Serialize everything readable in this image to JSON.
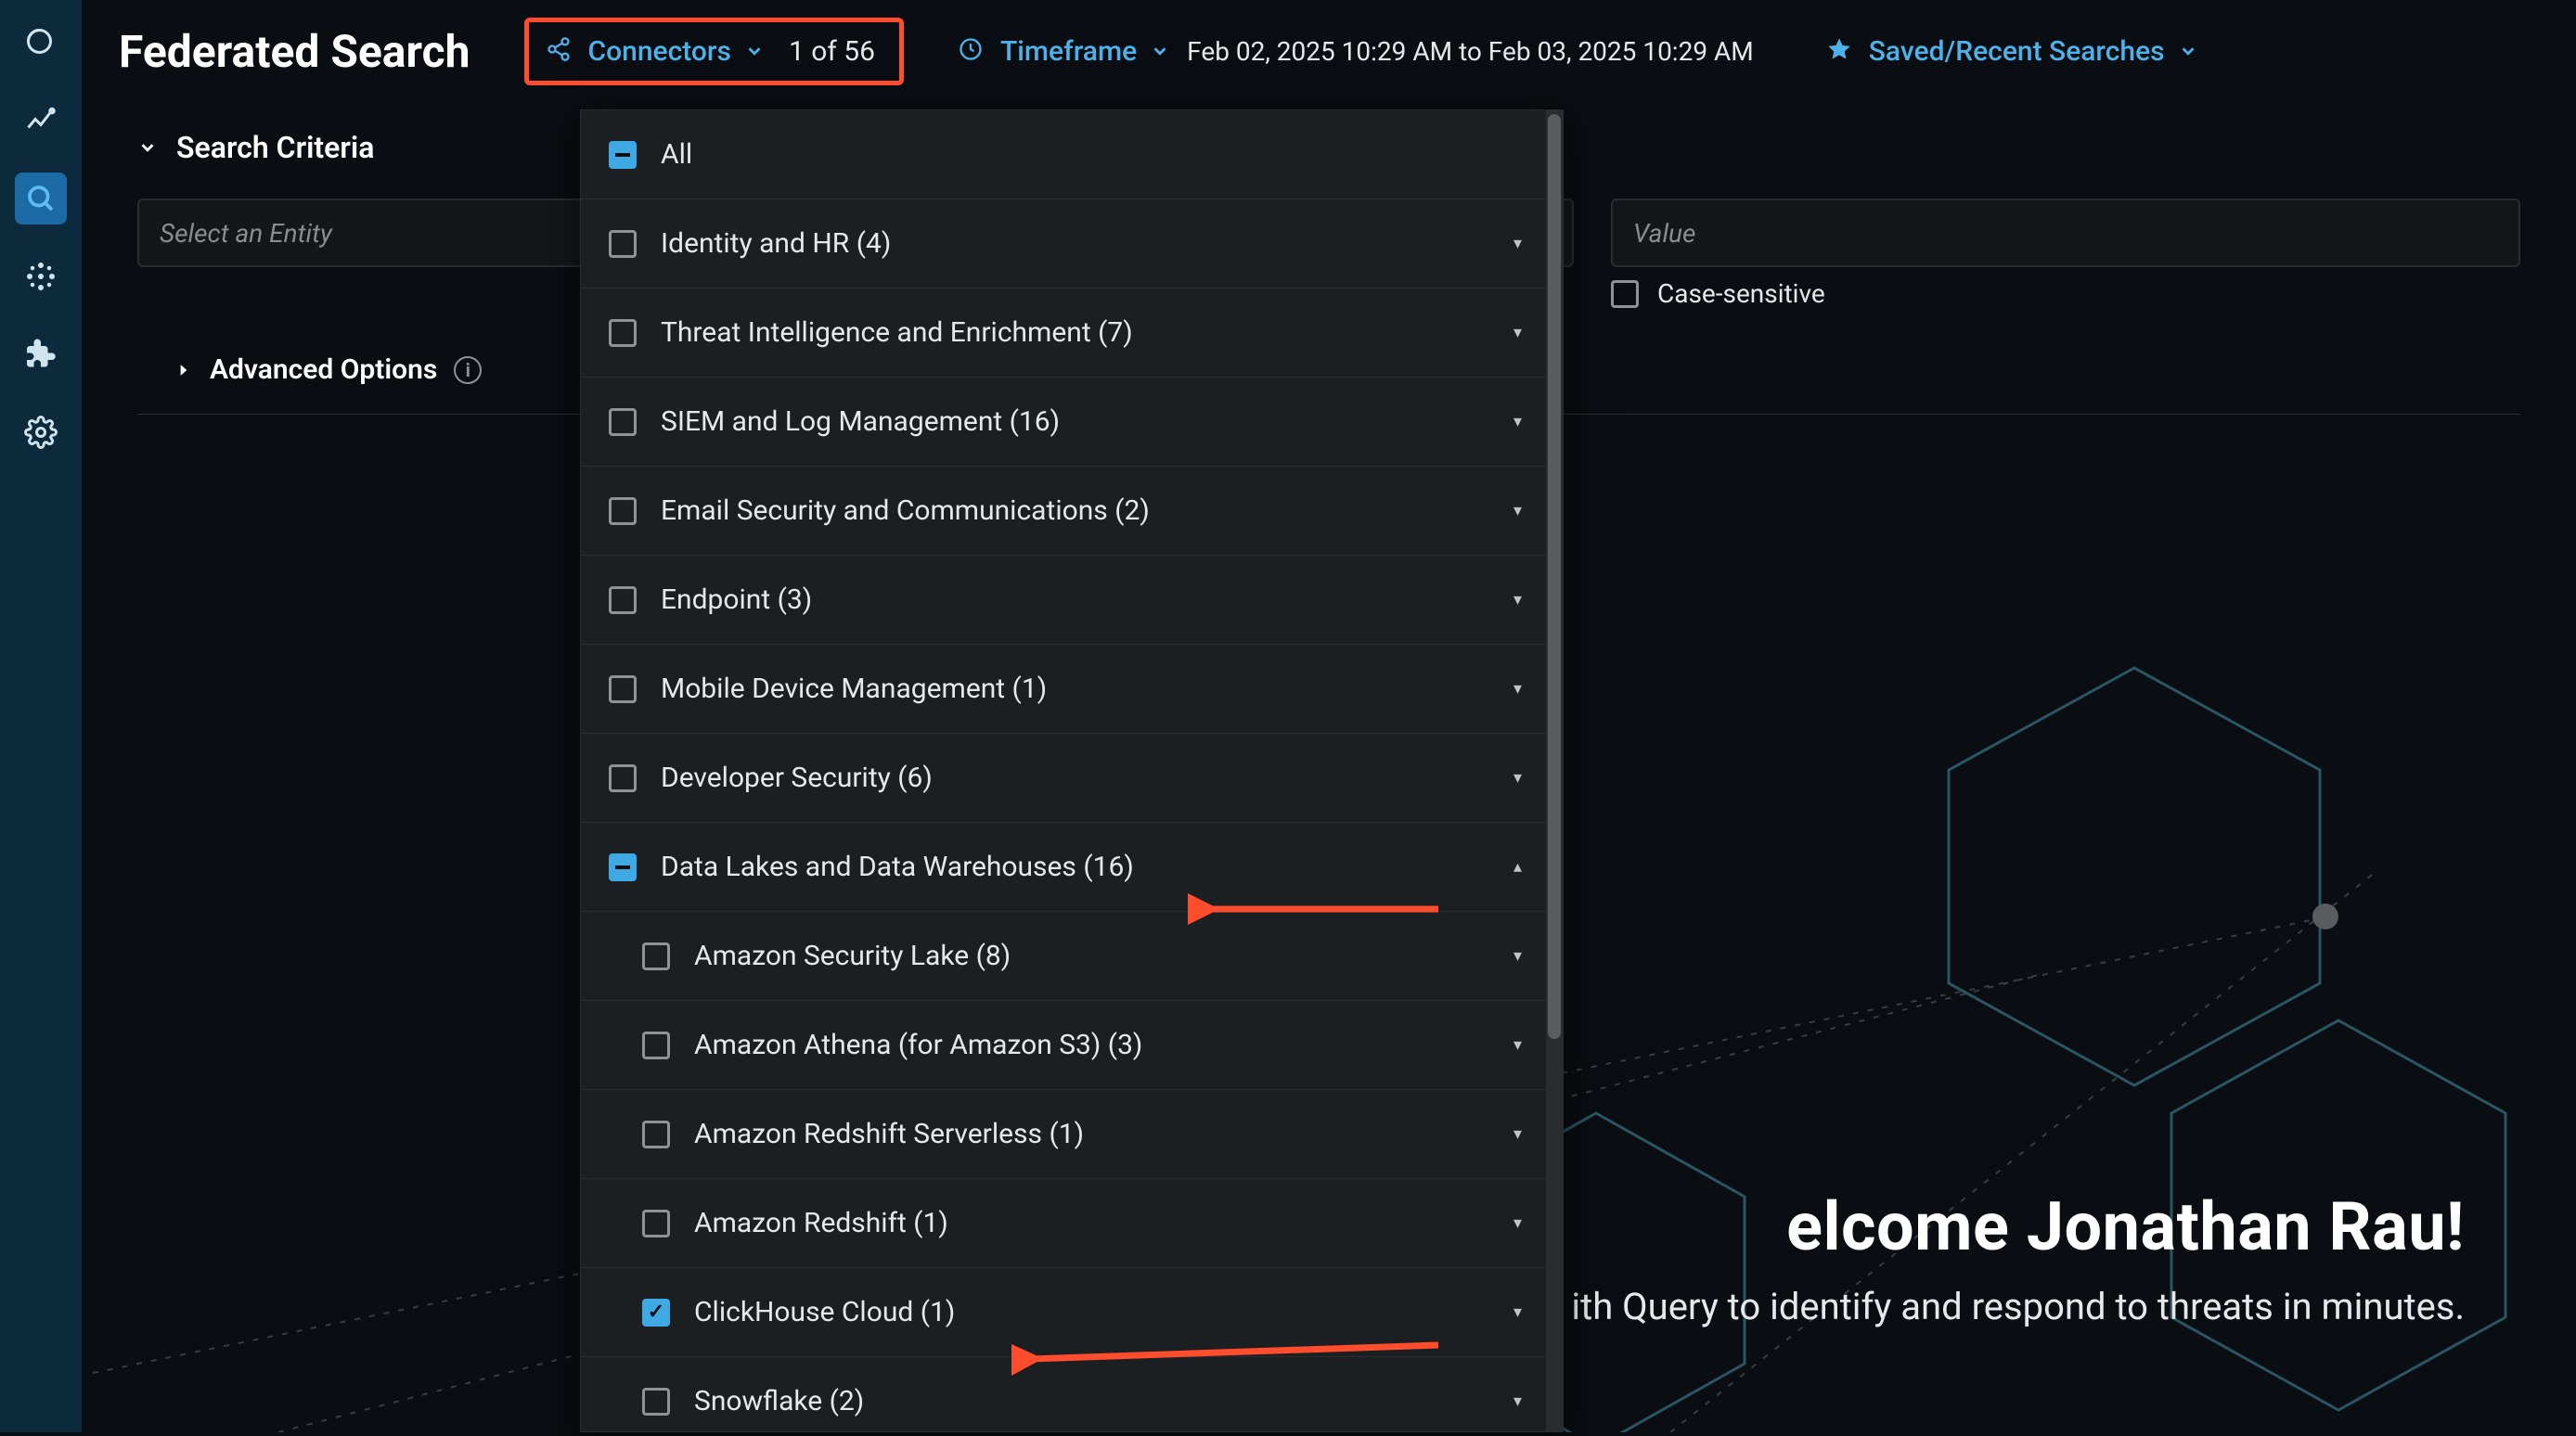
{
  "colors": {
    "bg": "#0a0d11",
    "rail": "#0d2a3d",
    "accent": "#3ea9e3",
    "link": "#4db1ea",
    "panel": "#1c1f22",
    "border": "#2a2d30",
    "text": "#e6e8ea",
    "muted": "#8a8d90",
    "highlight": "#ff4d2e"
  },
  "page_title": "Federated Search",
  "topbar": {
    "connectors_label": "Connectors",
    "connectors_count": "1 of 56",
    "timeframe_label": "Timeframe",
    "timeframe_value": "Feb 02, 2025 10:29 AM to Feb 03, 2025 10:29 AM",
    "saved_label": "Saved/Recent Searches"
  },
  "criteria": {
    "heading": "Search Criteria",
    "entity_placeholder": "Select an Entity",
    "value_placeholder": "Value",
    "case_sensitive_label": "Case-sensitive",
    "advanced_label": "Advanced Options"
  },
  "dropdown": {
    "all_label": "All",
    "categories": [
      {
        "label": "Identity and HR (4)",
        "state": "unchecked",
        "expanded": false
      },
      {
        "label": "Threat Intelligence and Enrichment (7)",
        "state": "unchecked",
        "expanded": false
      },
      {
        "label": "SIEM and Log Management (16)",
        "state": "unchecked",
        "expanded": false
      },
      {
        "label": "Email Security and Communications (2)",
        "state": "unchecked",
        "expanded": false
      },
      {
        "label": "Endpoint (3)",
        "state": "unchecked",
        "expanded": false
      },
      {
        "label": "Mobile Device Management (1)",
        "state": "unchecked",
        "expanded": false
      },
      {
        "label": "Developer Security (6)",
        "state": "unchecked",
        "expanded": false
      },
      {
        "label": "Data Lakes and Data Warehouses (16)",
        "state": "indeterminate",
        "expanded": true,
        "children": [
          {
            "label": "Amazon Security Lake (8)",
            "state": "unchecked"
          },
          {
            "label": "Amazon Athena (for Amazon S3) (3)",
            "state": "unchecked"
          },
          {
            "label": "Amazon Redshift Serverless (1)",
            "state": "unchecked"
          },
          {
            "label": "Amazon Redshift (1)",
            "state": "unchecked"
          },
          {
            "label": "ClickHouse Cloud (1)",
            "state": "checked"
          },
          {
            "label": "Snowflake (2)",
            "state": "unchecked"
          }
        ]
      }
    ]
  },
  "welcome": {
    "heading": "elcome Jonathan Rau!",
    "sub": "ith Query to identify and respond to threats in minutes."
  }
}
